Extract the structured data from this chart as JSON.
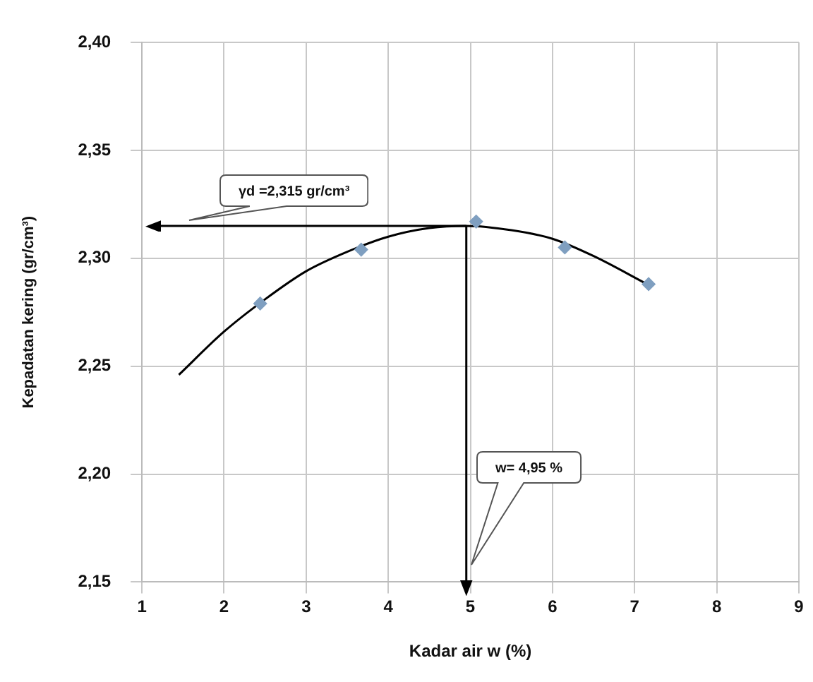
{
  "chart_data": {
    "type": "scatter",
    "xlabel": "Kadar air w (%)",
    "ylabel": "Kepadatan kering (gr/cm³)",
    "xlim": [
      1,
      9
    ],
    "xticks": [
      1,
      2,
      3,
      4,
      5,
      6,
      7,
      8,
      9
    ],
    "ylim": [
      2.15,
      2.4
    ],
    "yticks": [
      {
        "value": 2.15,
        "label": "2,15"
      },
      {
        "value": 2.2,
        "label": "2,20"
      },
      {
        "value": 2.25,
        "label": "2,25"
      },
      {
        "value": 2.3,
        "label": "2,30"
      },
      {
        "value": 2.35,
        "label": "2,35"
      },
      {
        "value": 2.4,
        "label": "2,40"
      }
    ],
    "grid": true,
    "series": [
      {
        "color": "#7f9fc0",
        "marker": "diamond",
        "x": [
          2.44,
          3.67,
          5.07,
          6.15,
          7.17
        ],
        "values": [
          2.279,
          2.304,
          2.317,
          2.305,
          2.288
        ]
      },
      {
        "type": "line",
        "color": "#000000",
        "marker": "none",
        "line_style": "solid",
        "x": [
          1.45,
          2.0,
          2.5,
          3.0,
          3.5,
          4.0,
          4.5,
          4.95,
          5.5,
          6.0,
          6.5,
          7.15
        ],
        "values": [
          2.246,
          2.266,
          2.281,
          2.294,
          2.303,
          2.31,
          2.314,
          2.315,
          2.313,
          2.309,
          2.301,
          2.288
        ]
      }
    ],
    "ref_lines": [
      {
        "axis": "y",
        "value": 2.315,
        "label": "γd =2,315 gr/cm³",
        "color": "#000000"
      },
      {
        "axis": "x",
        "value": 4.95,
        "label": "w= 4,95 %",
        "color": "#000000"
      }
    ]
  }
}
